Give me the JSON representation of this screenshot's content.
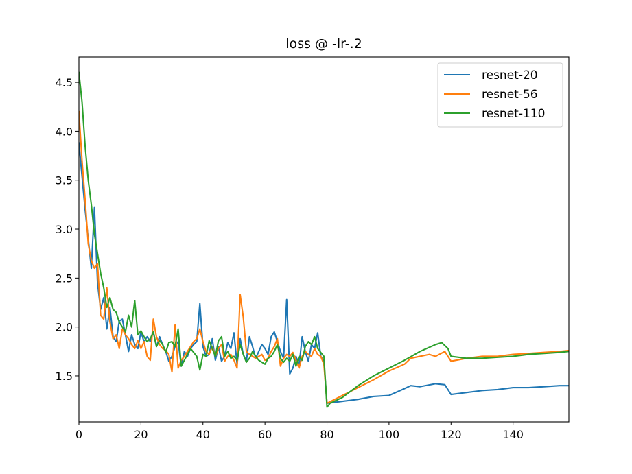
{
  "chart_data": {
    "type": "line",
    "title": "loss @ -lr-.2",
    "xlabel": "",
    "ylabel": "",
    "xlim": [
      0,
      158
    ],
    "ylim": [
      1.03,
      4.76
    ],
    "xticks": [
      0,
      20,
      40,
      60,
      80,
      100,
      120,
      140
    ],
    "yticks": [
      1.5,
      2.0,
      2.5,
      3.0,
      3.5,
      4.0,
      4.5
    ],
    "ytick_labels": [
      "1.5",
      "2.0",
      "2.5",
      "3.0",
      "3.5",
      "4.0",
      "4.5"
    ],
    "grid": false,
    "legend_position": "top-right",
    "series": [
      {
        "name": "resnet-20",
        "color": "#1f77b4",
        "x": [
          0,
          2,
          4,
          5,
          6,
          7,
          8,
          9,
          10,
          11,
          12,
          13,
          14,
          15,
          16,
          17,
          18,
          19,
          20,
          21,
          22,
          23,
          24,
          25,
          26,
          27,
          28,
          29,
          30,
          31,
          32,
          33,
          34,
          35,
          36,
          37,
          38,
          39,
          40,
          41,
          42,
          43,
          44,
          45,
          46,
          47,
          48,
          49,
          50,
          51,
          52,
          53,
          54,
          55,
          56,
          57,
          58,
          59,
          60,
          61,
          62,
          63,
          64,
          65,
          66,
          67,
          68,
          69,
          70,
          71,
          72,
          73,
          74,
          75,
          76,
          77,
          78,
          79,
          80,
          85,
          90,
          95,
          100,
          105,
          107,
          110,
          115,
          118,
          120,
          125,
          130,
          135,
          140,
          145,
          150,
          155,
          158
        ],
        "y": [
          3.88,
          3.2,
          2.6,
          3.22,
          2.45,
          2.18,
          2.3,
          1.98,
          2.2,
          1.9,
          1.85,
          2.06,
          2.08,
          1.92,
          1.75,
          1.92,
          1.82,
          1.78,
          1.95,
          1.85,
          1.9,
          1.85,
          1.95,
          1.8,
          1.9,
          1.82,
          1.75,
          1.65,
          1.7,
          1.8,
          1.85,
          1.6,
          1.75,
          1.7,
          1.78,
          1.82,
          1.85,
          2.24,
          1.8,
          1.7,
          1.72,
          1.88,
          1.66,
          1.8,
          1.65,
          1.7,
          1.84,
          1.78,
          1.94,
          1.62,
          1.88,
          1.72,
          1.65,
          1.9,
          1.8,
          1.68,
          1.75,
          1.82,
          1.78,
          1.72,
          1.9,
          1.95,
          1.85,
          1.75,
          1.68,
          2.28,
          1.52,
          1.58,
          1.7,
          1.6,
          1.9,
          1.75,
          1.65,
          1.82,
          1.78,
          1.94,
          1.7,
          1.65,
          1.22,
          1.24,
          1.26,
          1.29,
          1.3,
          1.37,
          1.4,
          1.39,
          1.42,
          1.41,
          1.31,
          1.33,
          1.35,
          1.36,
          1.38,
          1.38,
          1.39,
          1.4,
          1.4
        ]
      },
      {
        "name": "resnet-56",
        "color": "#ff7f0e",
        "x": [
          0,
          1,
          2,
          3,
          4,
          5,
          6,
          7,
          8,
          9,
          10,
          11,
          12,
          13,
          14,
          15,
          16,
          17,
          18,
          19,
          20,
          21,
          22,
          23,
          24,
          25,
          26,
          27,
          28,
          29,
          30,
          31,
          32,
          33,
          34,
          35,
          36,
          37,
          38,
          39,
          40,
          41,
          42,
          43,
          44,
          45,
          46,
          47,
          48,
          49,
          50,
          51,
          52,
          53,
          54,
          55,
          56,
          57,
          58,
          59,
          60,
          61,
          62,
          63,
          64,
          65,
          66,
          67,
          68,
          69,
          70,
          71,
          72,
          73,
          74,
          75,
          76,
          77,
          78,
          79,
          80,
          85,
          90,
          95,
          100,
          105,
          107,
          110,
          113,
          115,
          118,
          120,
          125,
          130,
          135,
          140,
          145,
          150,
          155,
          158
        ],
        "y": [
          4.2,
          3.7,
          3.3,
          2.85,
          2.68,
          2.6,
          2.65,
          2.12,
          2.08,
          2.4,
          2.05,
          1.88,
          1.92,
          1.78,
          1.98,
          1.92,
          1.88,
          1.82,
          1.78,
          1.86,
          1.78,
          1.85,
          1.7,
          1.66,
          2.08,
          1.9,
          1.82,
          1.78,
          1.76,
          1.72,
          1.54,
          2.02,
          1.58,
          1.66,
          1.7,
          1.75,
          1.8,
          1.85,
          1.88,
          1.98,
          1.85,
          1.75,
          1.72,
          1.8,
          1.7,
          1.78,
          1.82,
          1.65,
          1.7,
          1.72,
          1.66,
          1.58,
          2.33,
          2.1,
          1.75,
          1.72,
          1.7,
          1.68,
          1.7,
          1.72,
          1.66,
          1.68,
          1.75,
          1.8,
          1.88,
          1.6,
          1.68,
          1.72,
          1.7,
          1.74,
          1.66,
          1.58,
          1.7,
          1.75,
          1.72,
          1.7,
          1.78,
          1.72,
          1.7,
          1.62,
          1.22,
          1.3,
          1.38,
          1.46,
          1.55,
          1.62,
          1.68,
          1.7,
          1.72,
          1.7,
          1.75,
          1.65,
          1.68,
          1.7,
          1.7,
          1.72,
          1.73,
          1.74,
          1.75,
          1.76
        ]
      },
      {
        "name": "resnet-110",
        "color": "#2ca02c",
        "x": [
          0,
          1,
          2,
          3,
          4,
          5,
          6,
          7,
          8,
          9,
          10,
          11,
          12,
          13,
          14,
          15,
          16,
          17,
          18,
          19,
          20,
          21,
          22,
          23,
          24,
          25,
          26,
          27,
          28,
          29,
          30,
          31,
          32,
          33,
          34,
          35,
          36,
          37,
          38,
          39,
          40,
          41,
          42,
          43,
          44,
          45,
          46,
          47,
          48,
          49,
          50,
          51,
          52,
          53,
          54,
          55,
          56,
          57,
          58,
          59,
          60,
          61,
          62,
          63,
          64,
          65,
          66,
          67,
          68,
          69,
          70,
          71,
          72,
          73,
          74,
          75,
          76,
          77,
          78,
          79,
          80,
          81,
          85,
          90,
          95,
          100,
          105,
          110,
          115,
          117,
          119,
          120,
          125,
          130,
          135,
          140,
          145,
          150,
          155,
          158
        ],
        "y": [
          4.6,
          4.3,
          3.85,
          3.5,
          3.25,
          2.95,
          2.75,
          2.55,
          2.4,
          2.2,
          2.3,
          2.18,
          2.15,
          2.05,
          2.0,
          1.95,
          2.12,
          2.0,
          2.27,
          1.92,
          1.96,
          1.9,
          1.85,
          1.88,
          1.95,
          1.8,
          1.86,
          1.82,
          1.74,
          1.84,
          1.85,
          1.8,
          1.98,
          1.6,
          1.66,
          1.72,
          1.78,
          1.74,
          1.7,
          1.56,
          1.72,
          1.7,
          1.86,
          1.78,
          1.7,
          1.86,
          1.9,
          1.7,
          1.75,
          1.68,
          1.7,
          1.66,
          1.82,
          1.72,
          1.64,
          1.68,
          1.75,
          1.7,
          1.66,
          1.64,
          1.62,
          1.68,
          1.7,
          1.75,
          1.82,
          1.68,
          1.64,
          1.68,
          1.65,
          1.72,
          1.6,
          1.7,
          1.66,
          1.8,
          1.85,
          1.82,
          1.9,
          1.78,
          1.74,
          1.7,
          1.18,
          1.22,
          1.28,
          1.4,
          1.5,
          1.58,
          1.66,
          1.75,
          1.82,
          1.84,
          1.78,
          1.7,
          1.68,
          1.68,
          1.69,
          1.7,
          1.72,
          1.73,
          1.74,
          1.75
        ]
      }
    ]
  }
}
